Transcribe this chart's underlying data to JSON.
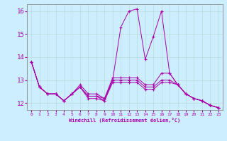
{
  "xlabel": "Windchill (Refroidissement éolien,°C)",
  "bg_color": "#cceeff",
  "grid_color": "#b8ddd8",
  "line_color": "#aa00aa",
  "spine_color": "#888888",
  "xlim": [
    -0.5,
    23.5
  ],
  "ylim": [
    11.7,
    16.3
  ],
  "yticks": [
    12,
    13,
    14,
    15,
    16
  ],
  "xticks": [
    0,
    1,
    2,
    3,
    4,
    5,
    6,
    7,
    8,
    9,
    10,
    11,
    12,
    13,
    14,
    15,
    16,
    17,
    18,
    19,
    20,
    21,
    22,
    23
  ],
  "series": [
    [
      13.8,
      12.7,
      12.4,
      12.4,
      12.1,
      12.4,
      12.7,
      12.2,
      12.2,
      12.1,
      13.0,
      15.3,
      16.0,
      16.1,
      13.9,
      14.9,
      16.0,
      13.3,
      12.8,
      12.4,
      12.2,
      12.1,
      11.9,
      11.8
    ],
    [
      13.8,
      12.7,
      12.4,
      12.4,
      12.1,
      12.4,
      12.8,
      12.4,
      12.4,
      12.2,
      13.1,
      13.1,
      13.1,
      13.1,
      12.8,
      12.8,
      13.3,
      13.3,
      12.8,
      12.4,
      12.2,
      12.1,
      11.9,
      11.8
    ],
    [
      13.8,
      12.7,
      12.4,
      12.4,
      12.1,
      12.4,
      12.7,
      12.3,
      12.3,
      12.2,
      13.0,
      13.0,
      13.0,
      13.0,
      12.7,
      12.7,
      13.0,
      13.0,
      12.8,
      12.4,
      12.2,
      12.1,
      11.9,
      11.8
    ],
    [
      13.8,
      12.7,
      12.4,
      12.4,
      12.1,
      12.4,
      12.7,
      12.3,
      12.3,
      12.1,
      12.9,
      12.9,
      12.9,
      12.9,
      12.6,
      12.6,
      12.9,
      12.9,
      12.8,
      12.4,
      12.2,
      12.1,
      11.9,
      11.8
    ]
  ]
}
